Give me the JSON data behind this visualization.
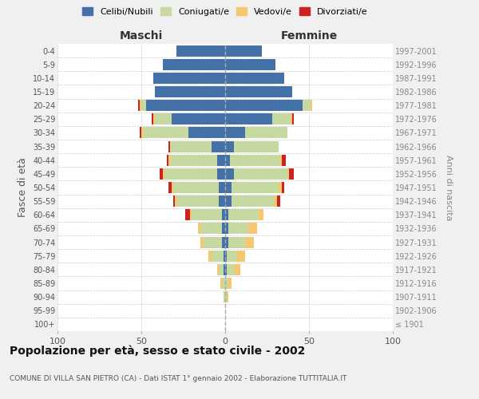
{
  "age_groups": [
    "100+",
    "95-99",
    "90-94",
    "85-89",
    "80-84",
    "75-79",
    "70-74",
    "65-69",
    "60-64",
    "55-59",
    "50-54",
    "45-49",
    "40-44",
    "35-39",
    "30-34",
    "25-29",
    "20-24",
    "15-19",
    "10-14",
    "5-9",
    "0-4"
  ],
  "birth_years": [
    "≤ 1901",
    "1902-1906",
    "1907-1911",
    "1912-1916",
    "1917-1921",
    "1922-1926",
    "1927-1931",
    "1932-1936",
    "1937-1941",
    "1942-1946",
    "1947-1951",
    "1952-1956",
    "1957-1961",
    "1962-1966",
    "1967-1971",
    "1972-1976",
    "1977-1981",
    "1982-1986",
    "1987-1991",
    "1992-1996",
    "1997-2001"
  ],
  "maschi": {
    "celibi": [
      0,
      0,
      0,
      0,
      1,
      1,
      2,
      2,
      2,
      4,
      4,
      5,
      5,
      8,
      22,
      32,
      47,
      42,
      43,
      37,
      29
    ],
    "coniugati": [
      0,
      0,
      1,
      2,
      3,
      7,
      11,
      13,
      18,
      25,
      27,
      31,
      28,
      25,
      27,
      10,
      3,
      0,
      0,
      0,
      0
    ],
    "vedovi": [
      0,
      0,
      0,
      1,
      1,
      2,
      2,
      1,
      1,
      1,
      1,
      1,
      1,
      0,
      1,
      1,
      1,
      0,
      0,
      0,
      0
    ],
    "divorziati": [
      0,
      0,
      0,
      0,
      0,
      0,
      0,
      0,
      3,
      1,
      2,
      2,
      1,
      1,
      1,
      1,
      1,
      0,
      0,
      0,
      0
    ]
  },
  "femmine": {
    "nubili": [
      0,
      0,
      0,
      0,
      1,
      1,
      2,
      2,
      2,
      4,
      4,
      5,
      3,
      5,
      12,
      28,
      46,
      40,
      35,
      30,
      22
    ],
    "coniugate": [
      0,
      0,
      1,
      2,
      4,
      6,
      10,
      12,
      18,
      25,
      28,
      32,
      30,
      27,
      25,
      11,
      5,
      0,
      0,
      0,
      0
    ],
    "vedove": [
      0,
      0,
      1,
      2,
      4,
      5,
      5,
      5,
      3,
      2,
      2,
      1,
      1,
      0,
      0,
      1,
      1,
      0,
      0,
      0,
      0
    ],
    "divorziate": [
      0,
      0,
      0,
      0,
      0,
      0,
      0,
      0,
      0,
      2,
      1,
      3,
      2,
      0,
      0,
      1,
      0,
      0,
      0,
      0,
      0
    ]
  },
  "colors": {
    "celibi": "#4472a8",
    "coniugati": "#c5d9a0",
    "vedovi": "#f5c870",
    "divorziati": "#cc2222"
  },
  "xlim": 100,
  "title": "Popolazione per età, sesso e stato civile - 2002",
  "subtitle": "COMUNE DI VILLA SAN PIETRO (CA) - Dati ISTAT 1° gennaio 2002 - Elaborazione TUTTITALIA.IT",
  "ylabel_left": "Fasce di età",
  "ylabel_right": "Anni di nascita",
  "xlabel_left": "Maschi",
  "xlabel_right": "Femmine",
  "bg_color": "#f0f0f0",
  "plot_bg_color": "#ffffff"
}
